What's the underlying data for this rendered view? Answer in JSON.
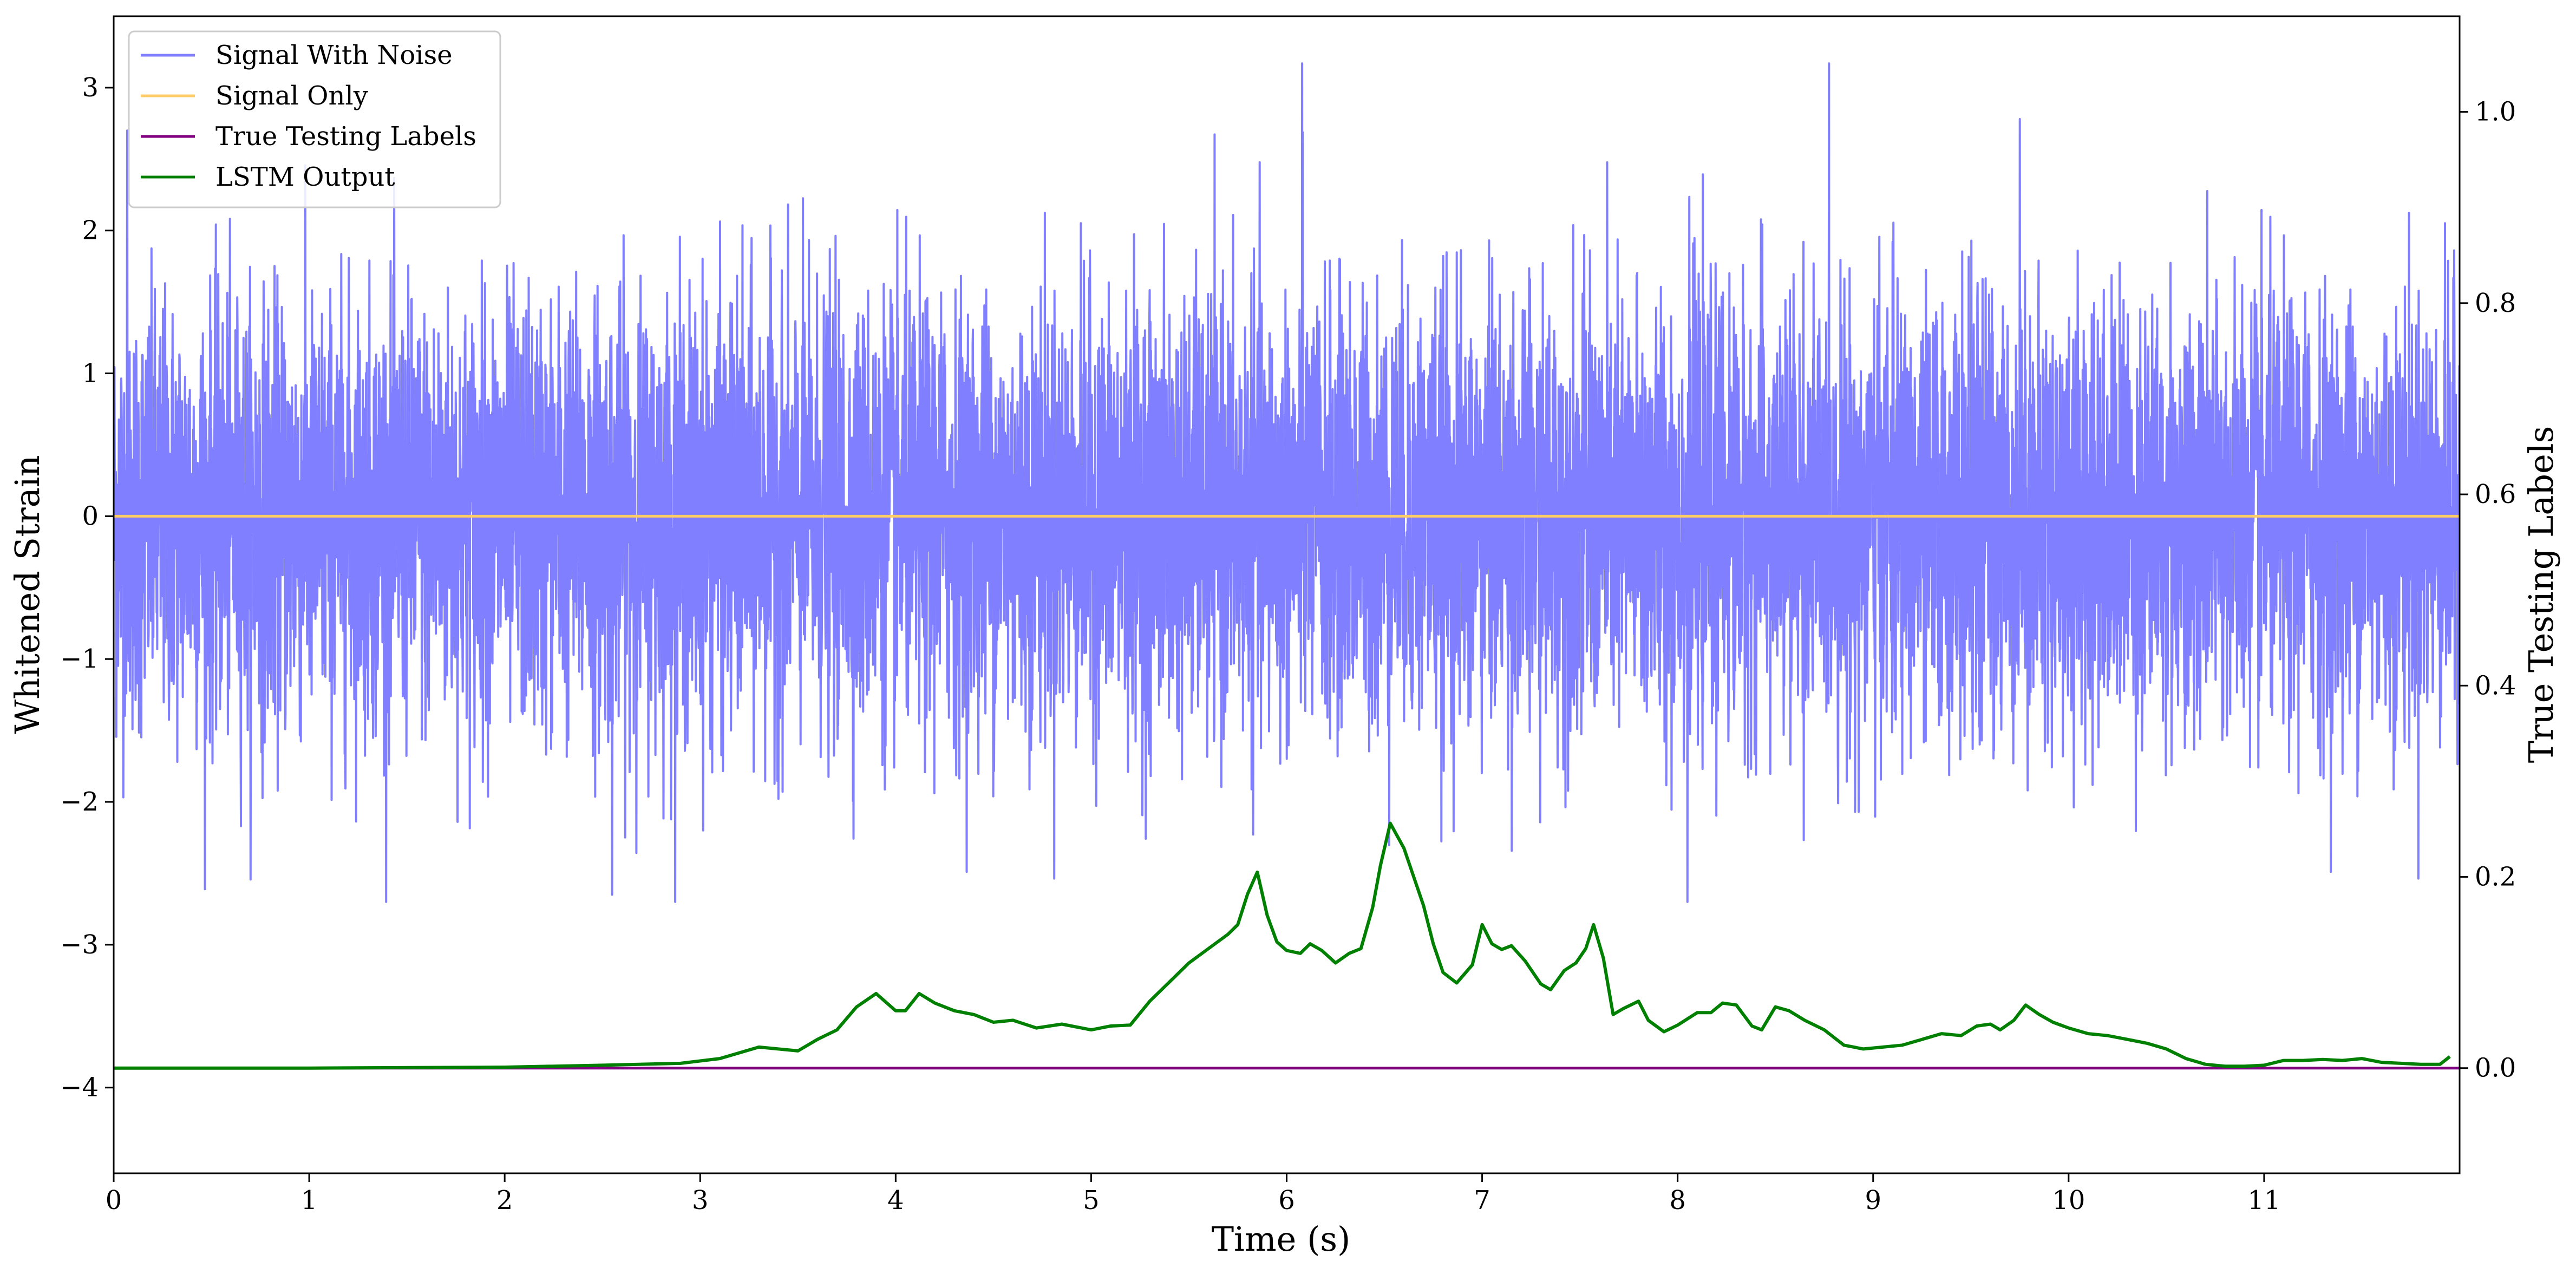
{
  "chart_data": {
    "type": "line",
    "xlabel": "Time (s)",
    "ylabel": "Whitened Strain",
    "y2label": "True Testing Labels",
    "xlim": [
      0,
      12
    ],
    "ylim": [
      -4.6,
      3.5
    ],
    "y2lim": [
      -0.11,
      1.1
    ],
    "xticks": [
      0,
      1,
      2,
      3,
      4,
      5,
      6,
      7,
      8,
      9,
      10,
      11
    ],
    "yticks": [
      3,
      2,
      1,
      0,
      -1,
      -2,
      -3,
      -4
    ],
    "ytick_labels": [
      "3",
      "2",
      "1",
      "0",
      "−1",
      "−2",
      "−3",
      "−4"
    ],
    "y2ticks": [
      1.0,
      0.8,
      0.6,
      0.4,
      0.2,
      0.0
    ],
    "y2tick_labels": [
      "1.0",
      "0.8",
      "0.6",
      "0.4",
      "0.2",
      "0.0"
    ],
    "legend": {
      "placement": "top-left"
    },
    "grid": false,
    "series": [
      {
        "name": "Signal With Noise",
        "axis": "left",
        "color": "#7f7fff",
        "typical_band": [
          -1.2,
          1.2
        ],
        "extremes": [
          -2.7,
          3.17
        ],
        "notable_peaks": [
          {
            "x": 6.08,
            "y": 3.17
          },
          {
            "x": 9.75,
            "y": 2.78
          },
          {
            "x": 0.07,
            "y": 2.7
          },
          {
            "x": 8.05,
            "y": -2.7
          },
          {
            "x": 2.55,
            "y": -2.65
          }
        ]
      },
      {
        "name": "Signal Only",
        "axis": "left",
        "color": "#ffcc66",
        "x": [
          0,
          12
        ],
        "y": [
          0,
          0
        ]
      },
      {
        "name": "True Testing Labels",
        "axis": "right",
        "color": "#800080",
        "x": [
          0,
          12
        ],
        "y": [
          0,
          0
        ]
      },
      {
        "name": "LSTM Output",
        "axis": "right",
        "color": "#008000",
        "x": [
          0,
          1,
          2,
          2.5,
          2.9,
          3.1,
          3.3,
          3.5,
          3.6,
          3.7,
          3.8,
          3.9,
          4.0,
          4.05,
          4.12,
          4.2,
          4.3,
          4.4,
          4.5,
          4.6,
          4.72,
          4.85,
          5.0,
          5.1,
          5.2,
          5.3,
          5.4,
          5.5,
          5.6,
          5.7,
          5.75,
          5.8,
          5.85,
          5.9,
          5.95,
          6.0,
          6.07,
          6.12,
          6.18,
          6.25,
          6.32,
          6.38,
          6.44,
          6.48,
          6.53,
          6.6,
          6.7,
          6.75,
          6.8,
          6.87,
          6.95,
          7.0,
          7.05,
          7.1,
          7.15,
          7.22,
          7.3,
          7.35,
          7.42,
          7.48,
          7.53,
          7.57,
          7.62,
          7.67,
          7.72,
          7.8,
          7.85,
          7.93,
          8.0,
          8.1,
          8.17,
          8.23,
          8.3,
          8.38,
          8.43,
          8.5,
          8.57,
          8.65,
          8.75,
          8.85,
          8.95,
          9.05,
          9.15,
          9.25,
          9.35,
          9.45,
          9.53,
          9.6,
          9.65,
          9.72,
          9.78,
          9.85,
          9.92,
          10.0,
          10.1,
          10.2,
          10.3,
          10.4,
          10.5,
          10.6,
          10.7,
          10.8,
          10.9,
          11.0,
          11.1,
          11.2,
          11.3,
          11.4,
          11.5,
          11.6,
          11.7,
          11.8,
          11.9,
          11.95
        ],
        "y": [
          0,
          0,
          0.001,
          0.003,
          0.005,
          0.01,
          0.022,
          0.018,
          0.03,
          0.04,
          0.064,
          0.078,
          0.06,
          0.06,
          0.078,
          0.068,
          0.06,
          0.056,
          0.048,
          0.05,
          0.042,
          0.046,
          0.04,
          0.044,
          0.045,
          0.07,
          0.09,
          0.11,
          0.125,
          0.14,
          0.15,
          0.182,
          0.205,
          0.16,
          0.132,
          0.123,
          0.12,
          0.13,
          0.123,
          0.11,
          0.12,
          0.125,
          0.168,
          0.212,
          0.256,
          0.23,
          0.17,
          0.13,
          0.1,
          0.089,
          0.108,
          0.15,
          0.13,
          0.124,
          0.128,
          0.112,
          0.088,
          0.082,
          0.102,
          0.11,
          0.125,
          0.15,
          0.115,
          0.056,
          0.062,
          0.07,
          0.05,
          0.038,
          0.045,
          0.058,
          0.058,
          0.068,
          0.066,
          0.044,
          0.04,
          0.064,
          0.06,
          0.05,
          0.04,
          0.024,
          0.02,
          0.022,
          0.024,
          0.03,
          0.036,
          0.034,
          0.044,
          0.046,
          0.04,
          0.05,
          0.066,
          0.056,
          0.048,
          0.042,
          0.036,
          0.034,
          0.03,
          0.026,
          0.02,
          0.01,
          0.004,
          0.002,
          0.002,
          0.003,
          0.008,
          0.008,
          0.009,
          0.008,
          0.01,
          0.006,
          0.005,
          0.004,
          0.004,
          0.012
        ]
      }
    ]
  }
}
